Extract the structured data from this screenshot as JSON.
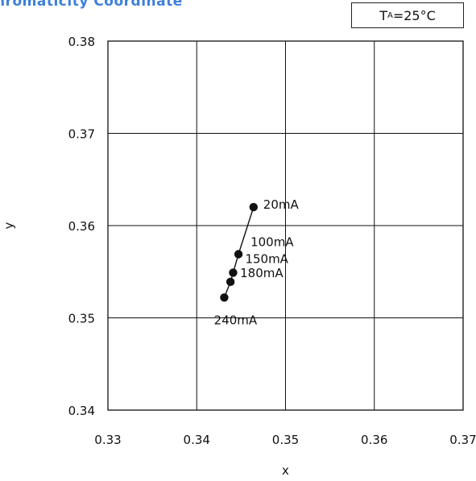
{
  "title": "hromaticity Coordinate",
  "condition": {
    "prefix": "T",
    "subscript": "A",
    "suffix": "=25°C"
  },
  "chart_data": {
    "type": "line",
    "title": "hromaticity Coordinate",
    "xlabel": "x",
    "ylabel": "y",
    "xlim": [
      0.33,
      0.37
    ],
    "ylim": [
      0.34,
      0.38
    ],
    "xticks": [
      "0.33",
      "0.34",
      "0.35",
      "0.36",
      "0.37"
    ],
    "yticks": [
      "0.34",
      "0.35",
      "0.36",
      "0.37",
      "0.38"
    ],
    "grid": true,
    "series": [
      {
        "points": [
          {
            "label": "20mA",
            "x": 0.3464,
            "y": 0.362
          },
          {
            "label": "100mA",
            "x": 0.3447,
            "y": 0.3569
          },
          {
            "label": "150mA",
            "x": 0.3441,
            "y": 0.3549
          },
          {
            "label": "180mA",
            "x": 0.3438,
            "y": 0.3539
          },
          {
            "label": "240mA",
            "x": 0.3431,
            "y": 0.3522
          }
        ]
      }
    ]
  }
}
